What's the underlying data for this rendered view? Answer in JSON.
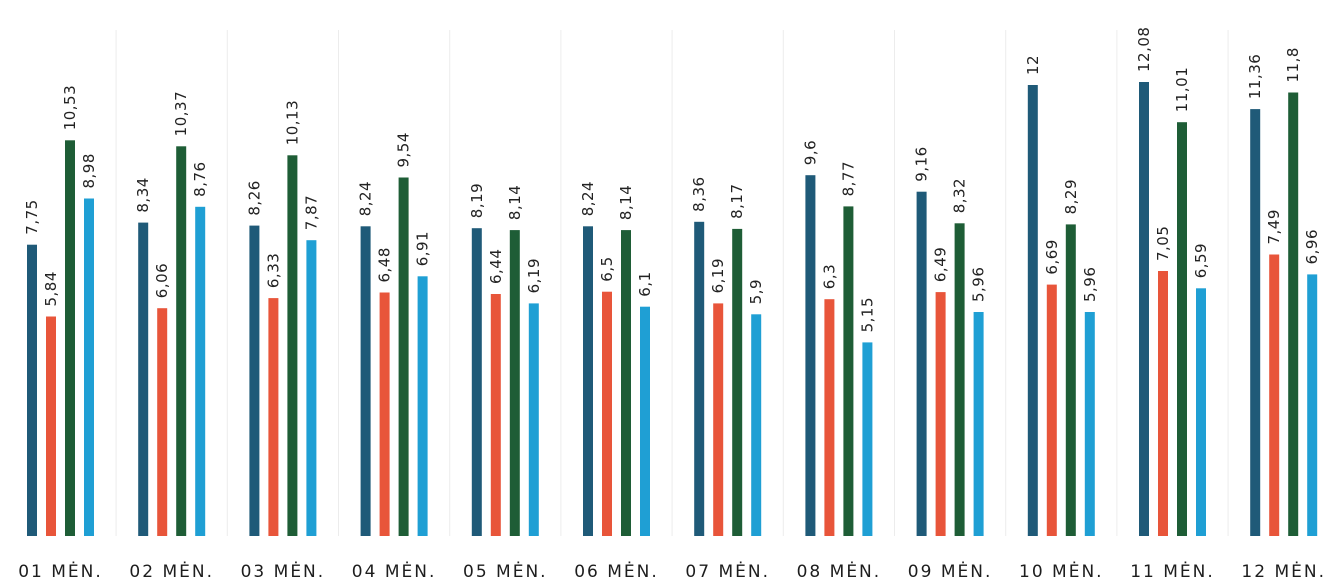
{
  "chart_data": {
    "type": "bar",
    "categories": [
      "01 MĖN.",
      "02 MĖN.",
      "03 MĖN.",
      "04 MĖN.",
      "05 MĖN.",
      "06 MĖN.",
      "07 MĖN.",
      "08 MĖN.",
      "09 MĖN.",
      "10 MĖN.",
      "11 MĖN.",
      "12 MĖN."
    ],
    "value_labels": [
      [
        "7,75",
        "8,34",
        "8,26",
        "8,24",
        "8,19",
        "8,24",
        "8,36",
        "9,6",
        "9,16",
        "12",
        "12,08",
        "11,36"
      ],
      [
        "5,84",
        "6,06",
        "6,33",
        "6,48",
        "6,44",
        "6,5",
        "6,19",
        "6,3",
        "6,49",
        "6,69",
        "7,05",
        "7,49"
      ],
      [
        "10,53",
        "10,37",
        "10,13",
        "9,54",
        "8,14",
        "8,14",
        "8,17",
        "8,77",
        "8,32",
        "8,29",
        "11,01",
        "11,8"
      ],
      [
        "8,98",
        "8,76",
        "7,87",
        "6,91",
        "6,19",
        "6,1",
        "5,9",
        "5,15",
        "5,96",
        "5,96",
        "6,59",
        "6,96"
      ]
    ],
    "series": [
      {
        "color": "#1f5a78",
        "values": [
          7.75,
          8.34,
          8.26,
          8.24,
          8.19,
          8.24,
          8.36,
          9.6,
          9.16,
          12,
          12.08,
          11.36
        ]
      },
      {
        "color": "#e8553a",
        "values": [
          5.84,
          6.06,
          6.33,
          6.48,
          6.44,
          6.5,
          6.19,
          6.3,
          6.49,
          6.69,
          7.05,
          7.49
        ]
      },
      {
        "color": "#1e5d36",
        "values": [
          10.53,
          10.37,
          10.13,
          9.54,
          8.14,
          8.14,
          8.17,
          8.77,
          8.32,
          8.29,
          11.01,
          11.8
        ]
      },
      {
        "color": "#1f9fd4",
        "values": [
          8.98,
          8.76,
          7.87,
          6.91,
          6.19,
          6.1,
          5.9,
          5.15,
          5.96,
          5.96,
          6.59,
          6.96
        ]
      }
    ],
    "ylim": [
      0,
      12.08
    ],
    "grid": true,
    "gridline_color": "#ececec",
    "label_color": "#222222"
  }
}
